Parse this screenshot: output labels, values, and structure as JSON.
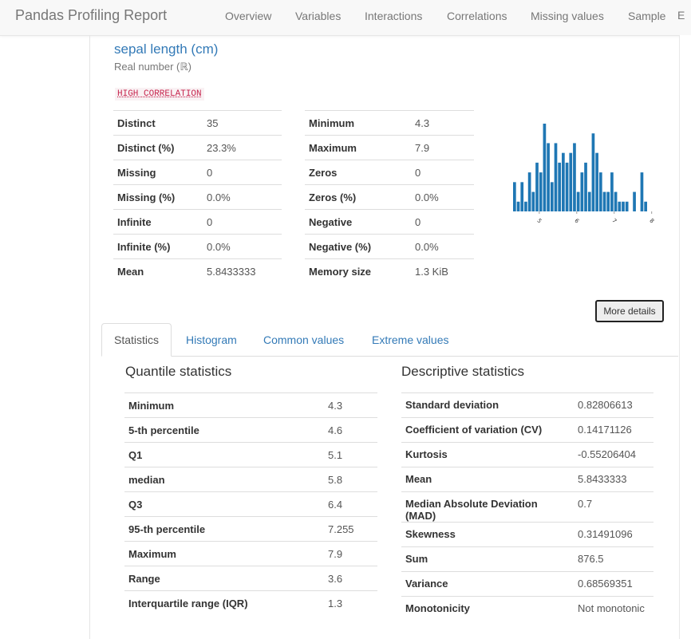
{
  "navbar": {
    "brand": "Pandas Profiling Report",
    "links": [
      "Overview",
      "Variables",
      "Interactions",
      "Correlations",
      "Missing values",
      "Sample"
    ],
    "edge_link": "E"
  },
  "variable": {
    "name": "sepal length (cm)",
    "type": "Real number (ℝ)",
    "badge": "HIGH CORRELATION",
    "summary_left": [
      {
        "label": "Distinct",
        "value": "35"
      },
      {
        "label": "Distinct (%)",
        "value": "23.3%"
      },
      {
        "label": "Missing",
        "value": "0"
      },
      {
        "label": "Missing (%)",
        "value": "0.0%"
      },
      {
        "label": "Infinite",
        "value": "0"
      },
      {
        "label": "Infinite (%)",
        "value": "0.0%"
      },
      {
        "label": "Mean",
        "value": "5.8433333"
      }
    ],
    "summary_right": [
      {
        "label": "Minimum",
        "value": "4.3"
      },
      {
        "label": "Maximum",
        "value": "7.9"
      },
      {
        "label": "Zeros",
        "value": "0"
      },
      {
        "label": "Zeros (%)",
        "value": "0.0%"
      },
      {
        "label": "Negative",
        "value": "0"
      },
      {
        "label": "Negative (%)",
        "value": "0.0%"
      },
      {
        "label": "Memory size",
        "value": "1.3 KiB"
      }
    ],
    "more_details_label": "More details"
  },
  "chart_data": {
    "type": "bar",
    "x_ticks": [
      "5",
      "6",
      "7",
      "8"
    ],
    "xlim": [
      4.3,
      7.9
    ],
    "values": [
      3,
      1,
      3,
      1,
      4,
      2,
      5,
      4,
      9,
      7,
      3,
      7,
      5,
      6,
      5,
      6,
      7,
      2,
      4,
      5,
      2,
      8,
      6,
      4,
      2,
      2,
      4,
      2,
      1,
      1,
      1,
      0,
      2,
      0,
      4,
      1
    ],
    "bar_color": "#1f77b4"
  },
  "tabs": [
    {
      "label": "Statistics",
      "active": true
    },
    {
      "label": "Histogram",
      "active": false
    },
    {
      "label": "Common values",
      "active": false
    },
    {
      "label": "Extreme values",
      "active": false
    }
  ],
  "quantile": {
    "title": "Quantile statistics",
    "rows": [
      {
        "label": "Minimum",
        "value": "4.3"
      },
      {
        "label": "5-th percentile",
        "value": "4.6"
      },
      {
        "label": "Q1",
        "value": "5.1"
      },
      {
        "label": "median",
        "value": "5.8"
      },
      {
        "label": "Q3",
        "value": "6.4"
      },
      {
        "label": "95-th percentile",
        "value": "7.255"
      },
      {
        "label": "Maximum",
        "value": "7.9"
      },
      {
        "label": "Range",
        "value": "3.6"
      },
      {
        "label": "Interquartile range (IQR)",
        "value": "1.3"
      }
    ]
  },
  "descriptive": {
    "title": "Descriptive statistics",
    "rows": [
      {
        "label": "Standard deviation",
        "value": "0.82806613"
      },
      {
        "label": "Coefficient of variation (CV)",
        "value": "0.14171126"
      },
      {
        "label": "Kurtosis",
        "value": "-0.55206404"
      },
      {
        "label": "Mean",
        "value": "5.8433333"
      },
      {
        "label": "Median Absolute Deviation (MAD)",
        "value": "0.7"
      },
      {
        "label": "Skewness",
        "value": "0.31491096"
      },
      {
        "label": "Sum",
        "value": "876.5"
      },
      {
        "label": "Variance",
        "value": "0.68569351"
      },
      {
        "label": "Monotonicity",
        "value": "Not monotonic"
      }
    ]
  }
}
